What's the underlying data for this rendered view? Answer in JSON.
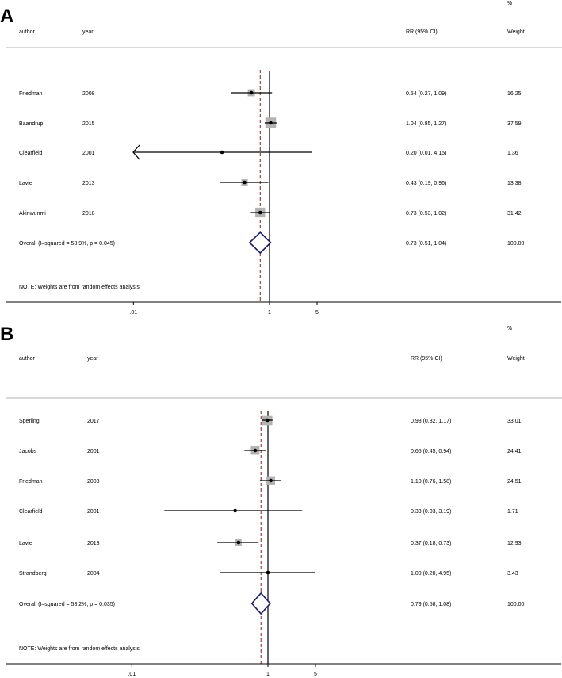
{
  "chart_data": [
    {
      "type": "forest",
      "panel_label": "A",
      "columns": {
        "author": "author",
        "year": "year",
        "effect": "RR (95% CI)",
        "weight_pct": "%",
        "weight": "Weight"
      },
      "studies": [
        {
          "author": "Friedman",
          "year": "2008",
          "rr": 0.54,
          "lo": 0.27,
          "hi": 1.09,
          "ci_text": "0.54 (0.27, 1.09)",
          "weight": "16.25"
        },
        {
          "author": "Baandrup",
          "year": "2015",
          "rr": 1.04,
          "lo": 0.85,
          "hi": 1.27,
          "ci_text": "1.04 (0.85, 1.27)",
          "weight": "37.59"
        },
        {
          "author": "Clearfield",
          "year": "2001",
          "rr": 0.2,
          "lo": 0.01,
          "hi": 4.15,
          "ci_text": "0.20 (0.01, 4.15)",
          "weight": "1.36",
          "arrow_left": true
        },
        {
          "author": "Lavie",
          "year": "2013",
          "rr": 0.43,
          "lo": 0.19,
          "hi": 0.96,
          "ci_text": "0.43 (0.19, 0.96)",
          "weight": "13.38"
        },
        {
          "author": "Akinwunmi",
          "year": "2018",
          "rr": 0.73,
          "lo": 0.53,
          "hi": 1.02,
          "ci_text": "0.73 (0.53, 1.02)",
          "weight": "31.42"
        }
      ],
      "overall": {
        "label": "Overall  (I–squared = 58.9%, p = 0.045)",
        "rr": 0.73,
        "lo": 0.51,
        "hi": 1.04,
        "ci_text": "0.73 (0.51, 1.04)",
        "weight": "100.00"
      },
      "note": "NOTE: Weights are from random effects analysis",
      "x_ticks": [
        {
          "value": 0.01,
          "label": ".01"
        },
        {
          "value": 1,
          "label": "1"
        },
        {
          "value": 5,
          "label": "5"
        }
      ],
      "x_scale": "log",
      "null_line": 1,
      "overall_line_color": "#8b1a1a"
    },
    {
      "type": "forest",
      "panel_label": "B",
      "columns": {
        "author": "author",
        "year": "year",
        "effect": "RR (95% CI)",
        "weight_pct": "%",
        "weight": "Weight"
      },
      "studies": [
        {
          "author": "Sperling",
          "year": "2017",
          "rr": 0.98,
          "lo": 0.82,
          "hi": 1.17,
          "ci_text": "0.98 (0.82, 1.17)",
          "weight": "33.01"
        },
        {
          "author": "Jacobs",
          "year": "2001",
          "rr": 0.65,
          "lo": 0.45,
          "hi": 0.94,
          "ci_text": "0.65 (0.45, 0.94)",
          "weight": "24.41"
        },
        {
          "author": "Friedman",
          "year": "2008",
          "rr": 1.1,
          "lo": 0.76,
          "hi": 1.58,
          "ci_text": "1.10 (0.76, 1.58)",
          "weight": "24.51"
        },
        {
          "author": "Clearfield",
          "year": "2001",
          "rr": 0.33,
          "lo": 0.03,
          "hi": 3.19,
          "ci_text": "0.33 (0.03, 3.19)",
          "weight": "1.71"
        },
        {
          "author": "Lavie",
          "year": "2013",
          "rr": 0.37,
          "lo": 0.18,
          "hi": 0.73,
          "ci_text": "0.37 (0.18, 0.73)",
          "weight": "12.93"
        },
        {
          "author": "Strandberg",
          "year": "2004",
          "rr": 1.0,
          "lo": 0.2,
          "hi": 4.95,
          "ci_text": "1.00 (0.20, 4.95)",
          "weight": "3.43"
        }
      ],
      "overall": {
        "label": "Overall  (I–squared = 58.2%, p = 0.035)",
        "rr": 0.79,
        "lo": 0.58,
        "hi": 1.08,
        "ci_text": "0.79 (0.58, 1.08)",
        "weight": "100.00"
      },
      "note": "NOTE: Weights are from random effects analysis",
      "x_ticks": [
        {
          "value": 0.01,
          "label": ".01"
        },
        {
          "value": 1,
          "label": "1"
        },
        {
          "value": 5,
          "label": "5"
        }
      ],
      "x_scale": "log",
      "null_line": 1,
      "overall_line_color": "#8b1a1a"
    }
  ]
}
